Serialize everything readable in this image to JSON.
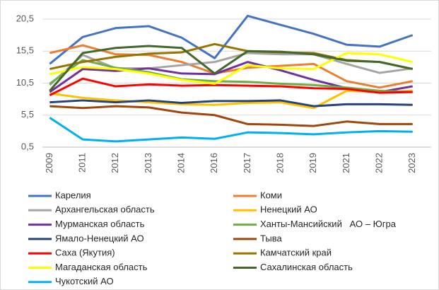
{
  "chart_data": {
    "type": "line",
    "categories": [
      "2009",
      "2011",
      "2012",
      "2013",
      "2014",
      "2016",
      "2017",
      "2018",
      "2019",
      "2021",
      "2022",
      "2023"
    ],
    "ylim": [
      0.5,
      20.5
    ],
    "yticks": [
      {
        "value": 0.5,
        "label": "0,5"
      },
      {
        "value": 5.5,
        "label": "5,5"
      },
      {
        "value": 10.5,
        "label": "10,5"
      },
      {
        "value": 15.5,
        "label": "15,5"
      },
      {
        "value": 20.5,
        "label": "20,5"
      }
    ],
    "grid": true,
    "legend": "bottom",
    "series": [
      {
        "name": "Карелия",
        "color": "#4472c4",
        "values": [
          13.5,
          17.7,
          19.1,
          19.4,
          17.6,
          14.4,
          21.0,
          19.6,
          18.2,
          16.5,
          16.2,
          18.0
        ]
      },
      {
        "name": "Коми",
        "color": "#ed7d31",
        "values": [
          15.2,
          16.4,
          15.0,
          14.9,
          13.8,
          12.0,
          12.9,
          13.2,
          13.5,
          10.8,
          9.8,
          10.8
        ]
      },
      {
        "name": "Архангельская область",
        "color": "#a5a5a5",
        "values": [
          10.2,
          14.9,
          12.8,
          12.8,
          13.3,
          13.8,
          15.2,
          15.0,
          15.0,
          13.5,
          12.1,
          12.8
        ]
      },
      {
        "name": "Ненецкий АО",
        "color": "#ffc000",
        "values": [
          8.9,
          8.2,
          7.8,
          7.5,
          7.2,
          7.1,
          7.4,
          7.5,
          6.6,
          9.3,
          9.1,
          9.3
        ]
      },
      {
        "name": "Мурманская область",
        "color": "#7030a0",
        "values": [
          9.1,
          12.7,
          12.4,
          12.8,
          12.0,
          11.9,
          13.8,
          12.5,
          11.0,
          9.7,
          9.1,
          10.0
        ]
      },
      {
        "name": "Ханты-Мансийский   АО – Югра",
        "color": "#70ad47",
        "values": [
          10.4,
          14.1,
          12.9,
          12.2,
          11.1,
          10.8,
          10.7,
          10.4,
          10.2,
          9.8,
          9.3,
          9.1
        ]
      },
      {
        "name": "Ямало-Ненецкий АО",
        "color": "#264478",
        "values": [
          7.5,
          7.8,
          7.5,
          7.8,
          7.4,
          7.7,
          7.7,
          7.8,
          6.9,
          7.2,
          7.2,
          7.1
        ]
      },
      {
        "name": "Тыва",
        "color": "#9e480e",
        "values": [
          6.9,
          6.6,
          6.9,
          6.7,
          5.9,
          5.5,
          4.1,
          4.0,
          3.8,
          4.5,
          4.1,
          4.1
        ]
      },
      {
        "name": "Саха (Якутия)",
        "color": "#ff0000",
        "values": [
          8.6,
          11.2,
          10.0,
          10.3,
          10.1,
          10.2,
          10.1,
          10.0,
          9.7,
          9.6,
          9.0,
          9.1
        ]
      },
      {
        "name": "Камчатский край",
        "color": "#997300",
        "values": [
          12.7,
          13.8,
          14.6,
          15.1,
          15.3,
          16.6,
          15.5,
          15.3,
          15.2,
          14.1,
          13.8,
          12.7
        ]
      },
      {
        "name": "Магаданская область",
        "color": "#ffff00",
        "values": [
          11.9,
          13.0,
          12.7,
          12.0,
          11.0,
          10.4,
          13.3,
          12.8,
          12.7,
          15.2,
          15.0,
          13.8
        ]
      },
      {
        "name": "Сахалинская область",
        "color": "#43682b",
        "values": [
          9.3,
          15.2,
          16.0,
          16.3,
          16.0,
          12.0,
          15.5,
          15.4,
          15.0,
          14.0,
          13.8,
          12.7
        ]
      },
      {
        "name": "Чукотский АО",
        "color": "#00b0f0",
        "values": [
          5.1,
          1.7,
          1.4,
          1.7,
          2.0,
          1.8,
          2.8,
          2.7,
          2.5,
          2.8,
          3.0,
          2.9
        ]
      }
    ]
  }
}
